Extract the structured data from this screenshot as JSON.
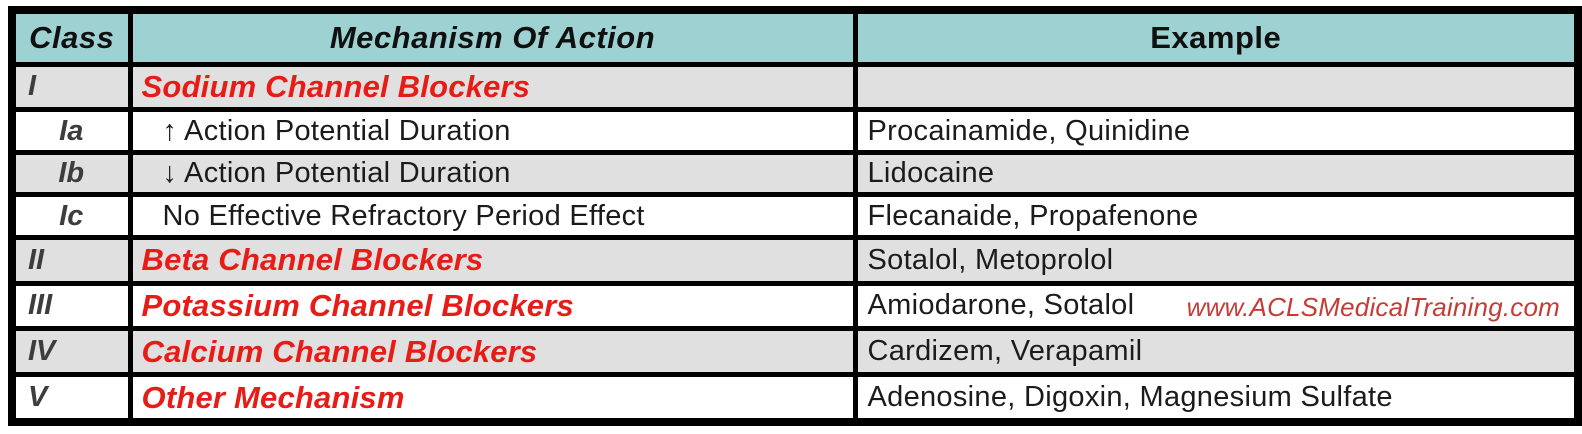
{
  "table": {
    "title_semantic": "antiarrhythmic-drug-classes",
    "headers": {
      "class": "Class",
      "mechanism": "Mechanism Of Action",
      "example": "Example"
    },
    "rows": [
      {
        "class": "I",
        "mechanism": "Sodium Channel Blockers",
        "example": "",
        "type": "category",
        "shade": "gray",
        "watermark": false
      },
      {
        "class": "Ia",
        "mechanism": "↑ Action Potential Duration",
        "example": "Procainamide, Quinidine",
        "type": "sub",
        "shade": "white",
        "watermark": false
      },
      {
        "class": "Ib",
        "mechanism": "↓ Action Potential Duration",
        "example": "Lidocaine",
        "type": "sub",
        "shade": "gray",
        "watermark": false
      },
      {
        "class": "Ic",
        "mechanism": "No Effective Refractory Period Effect",
        "example": "Flecanaide, Propafenone",
        "type": "sub",
        "shade": "white",
        "watermark": false
      },
      {
        "class": "II",
        "mechanism": "Beta Channel Blockers",
        "example": "Sotalol, Metoprolol",
        "type": "category",
        "shade": "gray",
        "watermark": false
      },
      {
        "class": "III",
        "mechanism": "Potassium Channel Blockers",
        "example": "Amiodarone, Sotalol",
        "type": "category",
        "shade": "white",
        "watermark": true
      },
      {
        "class": "IV",
        "mechanism": "Calcium Channel Blockers",
        "example": "Cardizem, Verapamil",
        "type": "category",
        "shade": "gray",
        "watermark": false
      },
      {
        "class": "V",
        "mechanism": "Other Mechanism",
        "example": "Adenosine, Digoxin, Magnesium Sulfate",
        "type": "category",
        "shade": "white",
        "watermark": false
      }
    ],
    "watermark_text": "www.ACLSMedicalTraining.com"
  },
  "colors": {
    "header_bg": "#9ed2d2",
    "row_gray_bg": "#e0e0e0",
    "row_white_bg": "#ffffff",
    "category_red": "#e81c17",
    "watermark_red": "#c53c35",
    "border_black": "#000000",
    "class_label_gray": "#3d3d3d"
  }
}
